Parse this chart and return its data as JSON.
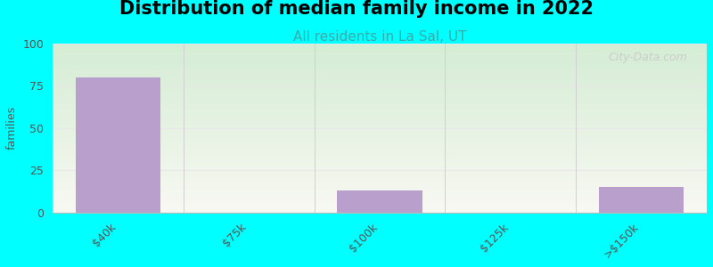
{
  "title": "Distribution of median family income in 2022",
  "subtitle": "All residents in La Sal, UT",
  "ylabel": "families",
  "categories": [
    "$40k",
    "$75k",
    "$100k",
    "$125k",
    ">$150k"
  ],
  "values": [
    80,
    0,
    13,
    0,
    15
  ],
  "bar_color": "#b89fcc",
  "background_color": "#00ffff",
  "gradient_top": "#d4ecd4",
  "gradient_bottom": "#f8f8f2",
  "ylim": [
    0,
    100
  ],
  "yticks": [
    0,
    25,
    50,
    75,
    100
  ],
  "title_fontsize": 15,
  "title_fontweight": "bold",
  "subtitle_fontsize": 11,
  "subtitle_color": "#3aabab",
  "ylabel_fontsize": 9,
  "tick_label_color": "#555555",
  "watermark_text": "City-Data.com",
  "watermark_color": "#c8c8c8",
  "bar_width": 0.65,
  "grid_color": "#e8e8e8",
  "separator_color": "#d0d0d0"
}
